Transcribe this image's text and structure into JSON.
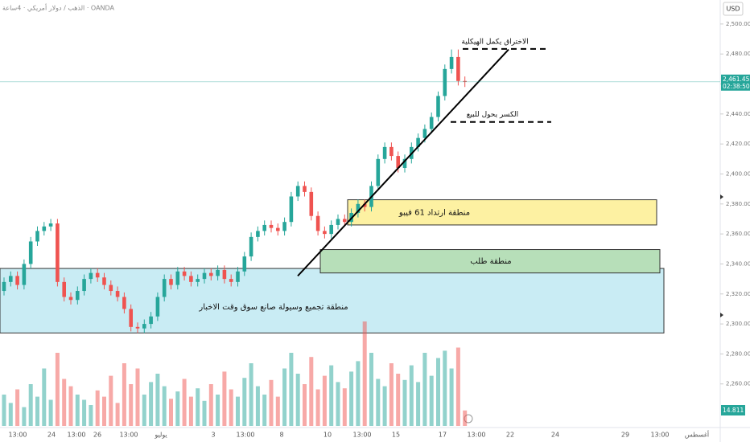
{
  "header": {
    "symbol": "الذهب / دولار أمريكي · 4ساعة · OANDA",
    "currency": "USD"
  },
  "chart_data": {
    "type": "candlestick",
    "up_color": "#26a69a",
    "down_color": "#ef5350",
    "ylim": [
      2232,
      2516
    ],
    "yticks": [
      {
        "value": 2500,
        "label": "2,500.000"
      },
      {
        "value": 2480,
        "label": "2,480.000"
      },
      {
        "value": 2460,
        "label": "2,460.000"
      },
      {
        "value": 2440,
        "label": "2,440.000"
      },
      {
        "value": 2420,
        "label": "2,420.000"
      },
      {
        "value": 2400,
        "label": "2,400.000"
      },
      {
        "value": 2380,
        "label": "2,380.000"
      },
      {
        "value": 2360,
        "label": "2,360.000"
      },
      {
        "value": 2340,
        "label": "2,340.000"
      },
      {
        "value": 2320,
        "label": "2,320.000"
      },
      {
        "value": 2300,
        "label": "2,300.000"
      },
      {
        "value": 2280,
        "label": "2,280.000"
      },
      {
        "value": 2260,
        "label": "2,260.000"
      }
    ],
    "x_labels": [
      "13:00",
      "24",
      "13:00",
      "26",
      "13:00",
      "يوليو",
      "3",
      "13:00",
      "8",
      "10",
      "13:00",
      "15",
      "17",
      "13:00",
      "22",
      "24",
      "29",
      "13:00",
      "أغسطس"
    ],
    "open": [
      2322,
      2328,
      2332,
      2326,
      2340,
      2355,
      2362,
      2365,
      2367,
      2328,
      2318,
      2316,
      2322,
      2330,
      2334,
      2331,
      2326,
      2322,
      2318,
      2310,
      2298,
      2297,
      2300,
      2305,
      2318,
      2330,
      2326,
      2335,
      2332,
      2328,
      2330,
      2334,
      2332,
      2336,
      2330,
      2328,
      2335,
      2345,
      2358,
      2362,
      2366,
      2364,
      2362,
      2368,
      2385,
      2392,
      2388,
      2372,
      2362,
      2360,
      2366,
      2370,
      2368,
      2374,
      2380,
      2378,
      2392,
      2410,
      2418,
      2412,
      2404,
      2410,
      2418,
      2424,
      2430,
      2438,
      2452,
      2470,
      2478,
      2462
    ],
    "high": [
      2331,
      2335,
      2335,
      2343,
      2358,
      2365,
      2368,
      2370,
      2370,
      2331,
      2321,
      2325,
      2333,
      2337,
      2337,
      2334,
      2329,
      2325,
      2321,
      2313,
      2301,
      2303,
      2308,
      2321,
      2333,
      2333,
      2338,
      2338,
      2335,
      2333,
      2337,
      2337,
      2339,
      2339,
      2333,
      2338,
      2348,
      2361,
      2365,
      2369,
      2369,
      2367,
      2371,
      2388,
      2395,
      2395,
      2391,
      2375,
      2365,
      2369,
      2373,
      2373,
      2377,
      2383,
      2383,
      2395,
      2413,
      2421,
      2421,
      2415,
      2413,
      2421,
      2427,
      2433,
      2441,
      2455,
      2473,
      2483,
      2483,
      2465
    ],
    "low": [
      2319,
      2325,
      2323,
      2323,
      2337,
      2352,
      2359,
      2362,
      2325,
      2315,
      2313,
      2313,
      2319,
      2327,
      2328,
      2323,
      2319,
      2315,
      2307,
      2295,
      2294,
      2294,
      2297,
      2302,
      2315,
      2323,
      2323,
      2329,
      2325,
      2325,
      2327,
      2329,
      2329,
      2327,
      2325,
      2325,
      2332,
      2342,
      2355,
      2359,
      2361,
      2359,
      2359,
      2365,
      2382,
      2385,
      2369,
      2359,
      2357,
      2357,
      2363,
      2365,
      2365,
      2371,
      2375,
      2375,
      2389,
      2407,
      2409,
      2401,
      2401,
      2407,
      2415,
      2421,
      2427,
      2435,
      2449,
      2467,
      2459,
      2458
    ],
    "close": [
      2328,
      2332,
      2326,
      2340,
      2355,
      2362,
      2365,
      2367,
      2328,
      2318,
      2316,
      2322,
      2330,
      2334,
      2331,
      2326,
      2322,
      2318,
      2310,
      2298,
      2297,
      2300,
      2305,
      2318,
      2330,
      2326,
      2335,
      2332,
      2328,
      2330,
      2334,
      2332,
      2336,
      2330,
      2328,
      2335,
      2345,
      2358,
      2362,
      2366,
      2364,
      2362,
      2368,
      2385,
      2392,
      2388,
      2372,
      2362,
      2360,
      2366,
      2370,
      2368,
      2374,
      2380,
      2378,
      2392,
      2410,
      2418,
      2412,
      2404,
      2410,
      2418,
      2424,
      2430,
      2438,
      2452,
      2470,
      2478,
      2462,
      2461.455
    ],
    "volume": [
      30,
      22,
      35,
      18,
      40,
      28,
      55,
      25,
      70,
      45,
      38,
      30,
      25,
      20,
      34,
      28,
      48,
      22,
      60,
      40,
      55,
      30,
      42,
      50,
      38,
      26,
      33,
      45,
      28,
      36,
      24,
      40,
      30,
      52,
      35,
      28,
      46,
      60,
      38,
      30,
      44,
      28,
      55,
      70,
      50,
      40,
      66,
      35,
      48,
      58,
      42,
      36,
      52,
      62,
      100,
      70,
      45,
      38,
      60,
      50,
      44,
      58,
      42,
      70,
      48,
      65,
      72,
      55,
      75,
      14.811
    ],
    "last_price_label": "2,461.455",
    "countdown": "02:38:50",
    "last_volume_label": "14.811 K",
    "annotations": {
      "zone_news": {
        "label": "منطقة تجميع وسيولة صانع سوق وقت الاخبار",
        "top": 2337,
        "bottom": 2294
      },
      "zone_demand": {
        "label": "منطقة طلب",
        "top": 2349.6,
        "bottom": 2334
      },
      "zone_fib": {
        "label": "منطقة ارتداد 61 فيبو",
        "top": 2382.8,
        "bottom": 2366
      },
      "breakout_line": {
        "label": "الاختراق يكمل الهيكلية",
        "price": 2483.4
      },
      "break_line": {
        "label": "الكسر يحول للبيع",
        "price": 2434.7
      },
      "trendline": {
        "start": 2332,
        "end": 2483
      }
    }
  }
}
